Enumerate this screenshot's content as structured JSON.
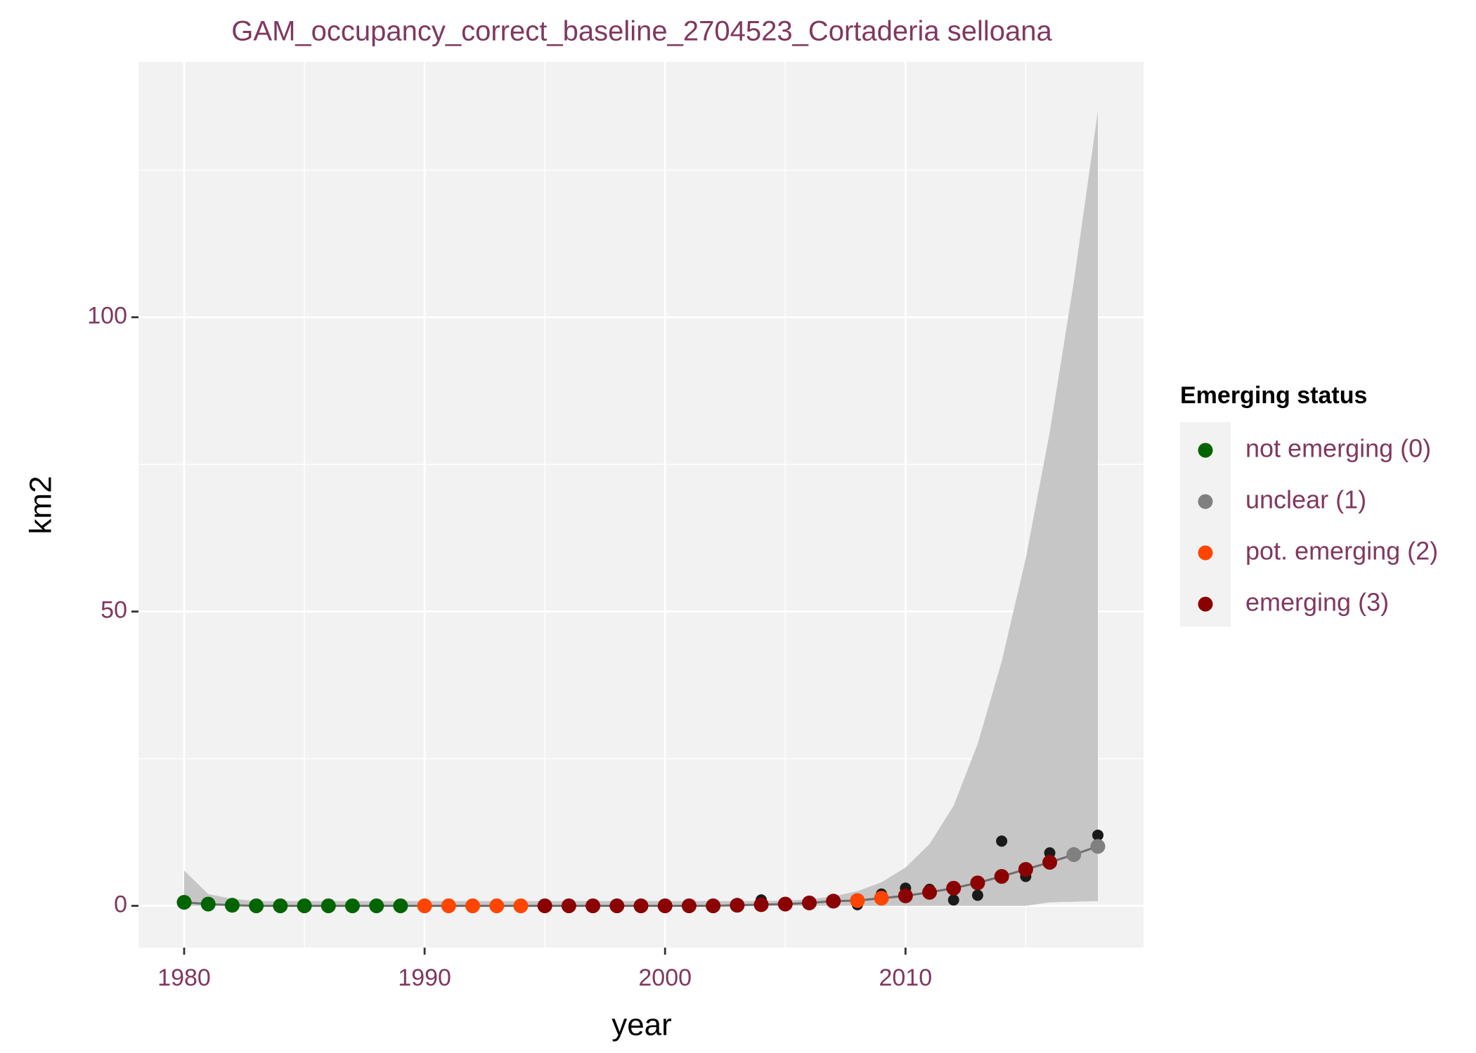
{
  "chart_data": {
    "type": "line",
    "title": "GAM_occupancy_correct_baseline_2704523_Cortaderia selloana",
    "x_label": "year",
    "y_label": "km2",
    "x": [
      1980,
      1981,
      1982,
      1983,
      1984,
      1985,
      1986,
      1987,
      1988,
      1989,
      1990,
      1991,
      1992,
      1993,
      1994,
      1995,
      1996,
      1997,
      1998,
      1999,
      2000,
      2001,
      2002,
      2003,
      2004,
      2005,
      2006,
      2007,
      2008,
      2009,
      2010,
      2011,
      2012,
      2013,
      2014,
      2015,
      2016,
      2017,
      2018
    ],
    "fit": {
      "color": "#6e6e6e",
      "band_color": "#c6c6c6",
      "values": [
        0.6,
        0.3,
        0.1,
        0,
        0,
        0,
        0,
        0,
        0,
        0,
        0,
        0,
        0,
        0,
        0,
        0,
        0,
        0,
        0,
        0,
        0,
        0,
        0,
        0.1,
        0.2,
        0.3,
        0.5,
        0.8,
        0.9,
        1.3,
        1.7,
        2.3,
        3.0,
        3.9,
        5.0,
        6.2,
        7.4,
        8.7,
        10.1
      ],
      "lower": [
        0,
        0,
        0,
        0,
        0,
        0,
        0,
        0,
        0,
        0,
        0,
        0,
        0,
        0,
        0,
        0,
        0,
        0,
        0,
        0,
        0,
        0,
        0,
        0,
        0,
        0,
        0,
        0,
        0,
        0,
        0,
        0,
        0,
        0,
        0,
        0,
        0.6,
        0.7,
        0.8
      ],
      "upper": [
        6,
        2,
        1.2,
        0.8,
        0.8,
        0.8,
        0.8,
        0.8,
        0.8,
        0.8,
        0.8,
        0.8,
        0.8,
        0.8,
        0.8,
        0.8,
        0.8,
        0.8,
        0.8,
        0.8,
        0.8,
        0.8,
        0.8,
        0.8,
        0.8,
        0.9,
        1.1,
        1.6,
        2.5,
        4,
        6.5,
        10.5,
        17,
        27.5,
        41.5,
        59,
        80.5,
        106,
        135
      ]
    },
    "observed": {
      "color": "#1a1a1a",
      "values": [
        0.8,
        0.3,
        0,
        0,
        0,
        0,
        0,
        0,
        0,
        0,
        0,
        0,
        0,
        0,
        0,
        0,
        0,
        0,
        0,
        0,
        0,
        0,
        0,
        0,
        1,
        0.4,
        0.6,
        1,
        0.2,
        2,
        3,
        2.8,
        1,
        1.8,
        11,
        5,
        9,
        9,
        12
      ]
    },
    "legend": {
      "title": "Emerging status"
    },
    "series": [
      {
        "name": "not emerging (0)",
        "color": "#006400",
        "x": [
          1980,
          1981,
          1982,
          1983,
          1984,
          1985,
          1986,
          1987,
          1988,
          1989
        ],
        "values": [
          0.6,
          0.3,
          0.1,
          0,
          0,
          0,
          0,
          0,
          0,
          0
        ]
      },
      {
        "name": "unclear (1)",
        "color": "#808080",
        "x": [
          2017,
          2018
        ],
        "values": [
          8.7,
          10.1
        ]
      },
      {
        "name": "pot. emerging (2)",
        "color": "#ff4500",
        "x": [
          1990,
          1991,
          1992,
          1993,
          1994,
          2008,
          2009
        ],
        "values": [
          0,
          0,
          0,
          0,
          0,
          0.9,
          1.3
        ]
      },
      {
        "name": "emerging (3)",
        "color": "#8b0000",
        "x": [
          1995,
          1996,
          1997,
          1998,
          1999,
          2000,
          2001,
          2002,
          2003,
          2004,
          2005,
          2006,
          2007,
          2010,
          2011,
          2012,
          2013,
          2014,
          2015,
          2016
        ],
        "values": [
          0,
          0,
          0,
          0,
          0,
          0,
          0,
          0,
          0.1,
          0.2,
          0.3,
          0.5,
          0.8,
          1.7,
          2.3,
          3.0,
          3.9,
          5.0,
          6.2,
          7.4
        ]
      }
    ],
    "xlim": [
      1978.1,
      2019.9
    ],
    "ylim": [
      -7.1,
      143.4
    ],
    "xticks": [
      1980,
      1990,
      2000,
      2010
    ],
    "yticks": [
      0,
      50,
      100
    ],
    "x_minor_ticks": [
      1985,
      1995,
      2005,
      2015
    ],
    "y_minor_ticks": [
      25,
      75,
      125
    ],
    "grid": true
  }
}
